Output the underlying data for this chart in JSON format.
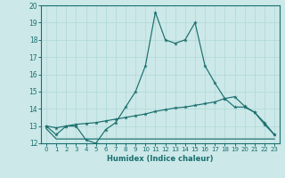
{
  "xlabel": "Humidex (Indice chaleur)",
  "bg_color": "#cce8e8",
  "line_color": "#1a6e6e",
  "xlim": [
    -0.5,
    23.5
  ],
  "ylim": [
    12,
    20
  ],
  "yticks": [
    12,
    13,
    14,
    15,
    16,
    17,
    18,
    19,
    20
  ],
  "xticks": [
    0,
    1,
    2,
    3,
    4,
    5,
    6,
    7,
    8,
    9,
    10,
    11,
    12,
    13,
    14,
    15,
    16,
    17,
    18,
    19,
    20,
    21,
    22,
    23
  ],
  "main_x": [
    0,
    1,
    2,
    3,
    4,
    5,
    6,
    7,
    8,
    9,
    10,
    11,
    12,
    13,
    14,
    15,
    16,
    17,
    18,
    19,
    20,
    21,
    22,
    23
  ],
  "main_y": [
    13.0,
    12.5,
    13.0,
    13.0,
    12.2,
    12.0,
    12.8,
    13.2,
    14.1,
    15.0,
    16.5,
    19.6,
    18.0,
    17.8,
    18.0,
    19.0,
    16.5,
    15.5,
    14.6,
    14.1,
    14.1,
    13.8,
    13.1,
    12.5
  ],
  "upper_x": [
    0,
    1,
    2,
    3,
    4,
    5,
    6,
    7,
    8,
    9,
    10,
    11,
    12,
    13,
    14,
    15,
    16,
    17,
    18,
    19,
    20,
    21,
    22,
    23
  ],
  "upper_y": [
    13.0,
    12.9,
    13.0,
    13.1,
    13.15,
    13.2,
    13.3,
    13.4,
    13.5,
    13.6,
    13.7,
    13.85,
    13.95,
    14.05,
    14.1,
    14.2,
    14.3,
    14.4,
    14.6,
    14.7,
    14.15,
    13.8,
    13.2,
    12.5
  ],
  "lower_x": [
    0,
    1,
    2,
    3,
    4,
    5,
    6,
    7,
    8,
    9,
    10,
    11,
    12,
    13,
    14,
    15,
    16,
    17,
    18,
    19,
    20,
    21,
    22,
    23
  ],
  "lower_y": [
    12.85,
    12.25,
    12.25,
    12.25,
    12.25,
    12.25,
    12.25,
    12.25,
    12.25,
    12.25,
    12.25,
    12.25,
    12.25,
    12.25,
    12.25,
    12.25,
    12.25,
    12.25,
    12.25,
    12.25,
    12.25,
    12.25,
    12.25,
    12.25
  ]
}
